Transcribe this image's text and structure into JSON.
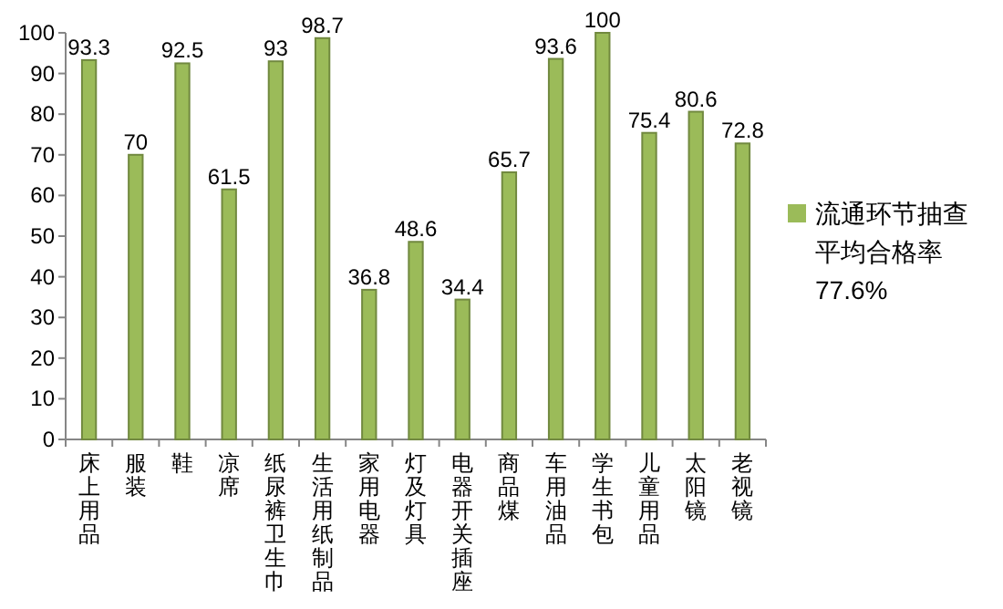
{
  "chart_data": {
    "type": "bar",
    "categories": [
      "床上用品",
      "服装",
      "鞋",
      "凉席",
      "纸尿裤卫生巾",
      "生活用纸制品",
      "家用电器",
      "灯及灯具",
      "电器开关插座",
      "商品煤",
      "车用油品",
      "学生书包",
      "儿童用品",
      "太阳镜",
      "老视镜"
    ],
    "series": [
      {
        "name": "流通环节抽查平均合格率 77.6%",
        "color": "#9bbb59",
        "values": [
          93.3,
          70,
          92.5,
          61.5,
          93,
          98.7,
          36.8,
          48.6,
          34.4,
          65.7,
          93.6,
          100,
          75.4,
          80.6,
          72.8
        ]
      }
    ],
    "ylim": [
      0,
      100
    ],
    "yticks": [
      0,
      10,
      20,
      30,
      40,
      50,
      60,
      70,
      80,
      90,
      100
    ],
    "data_labels": true,
    "grid": false,
    "legend": "right"
  }
}
